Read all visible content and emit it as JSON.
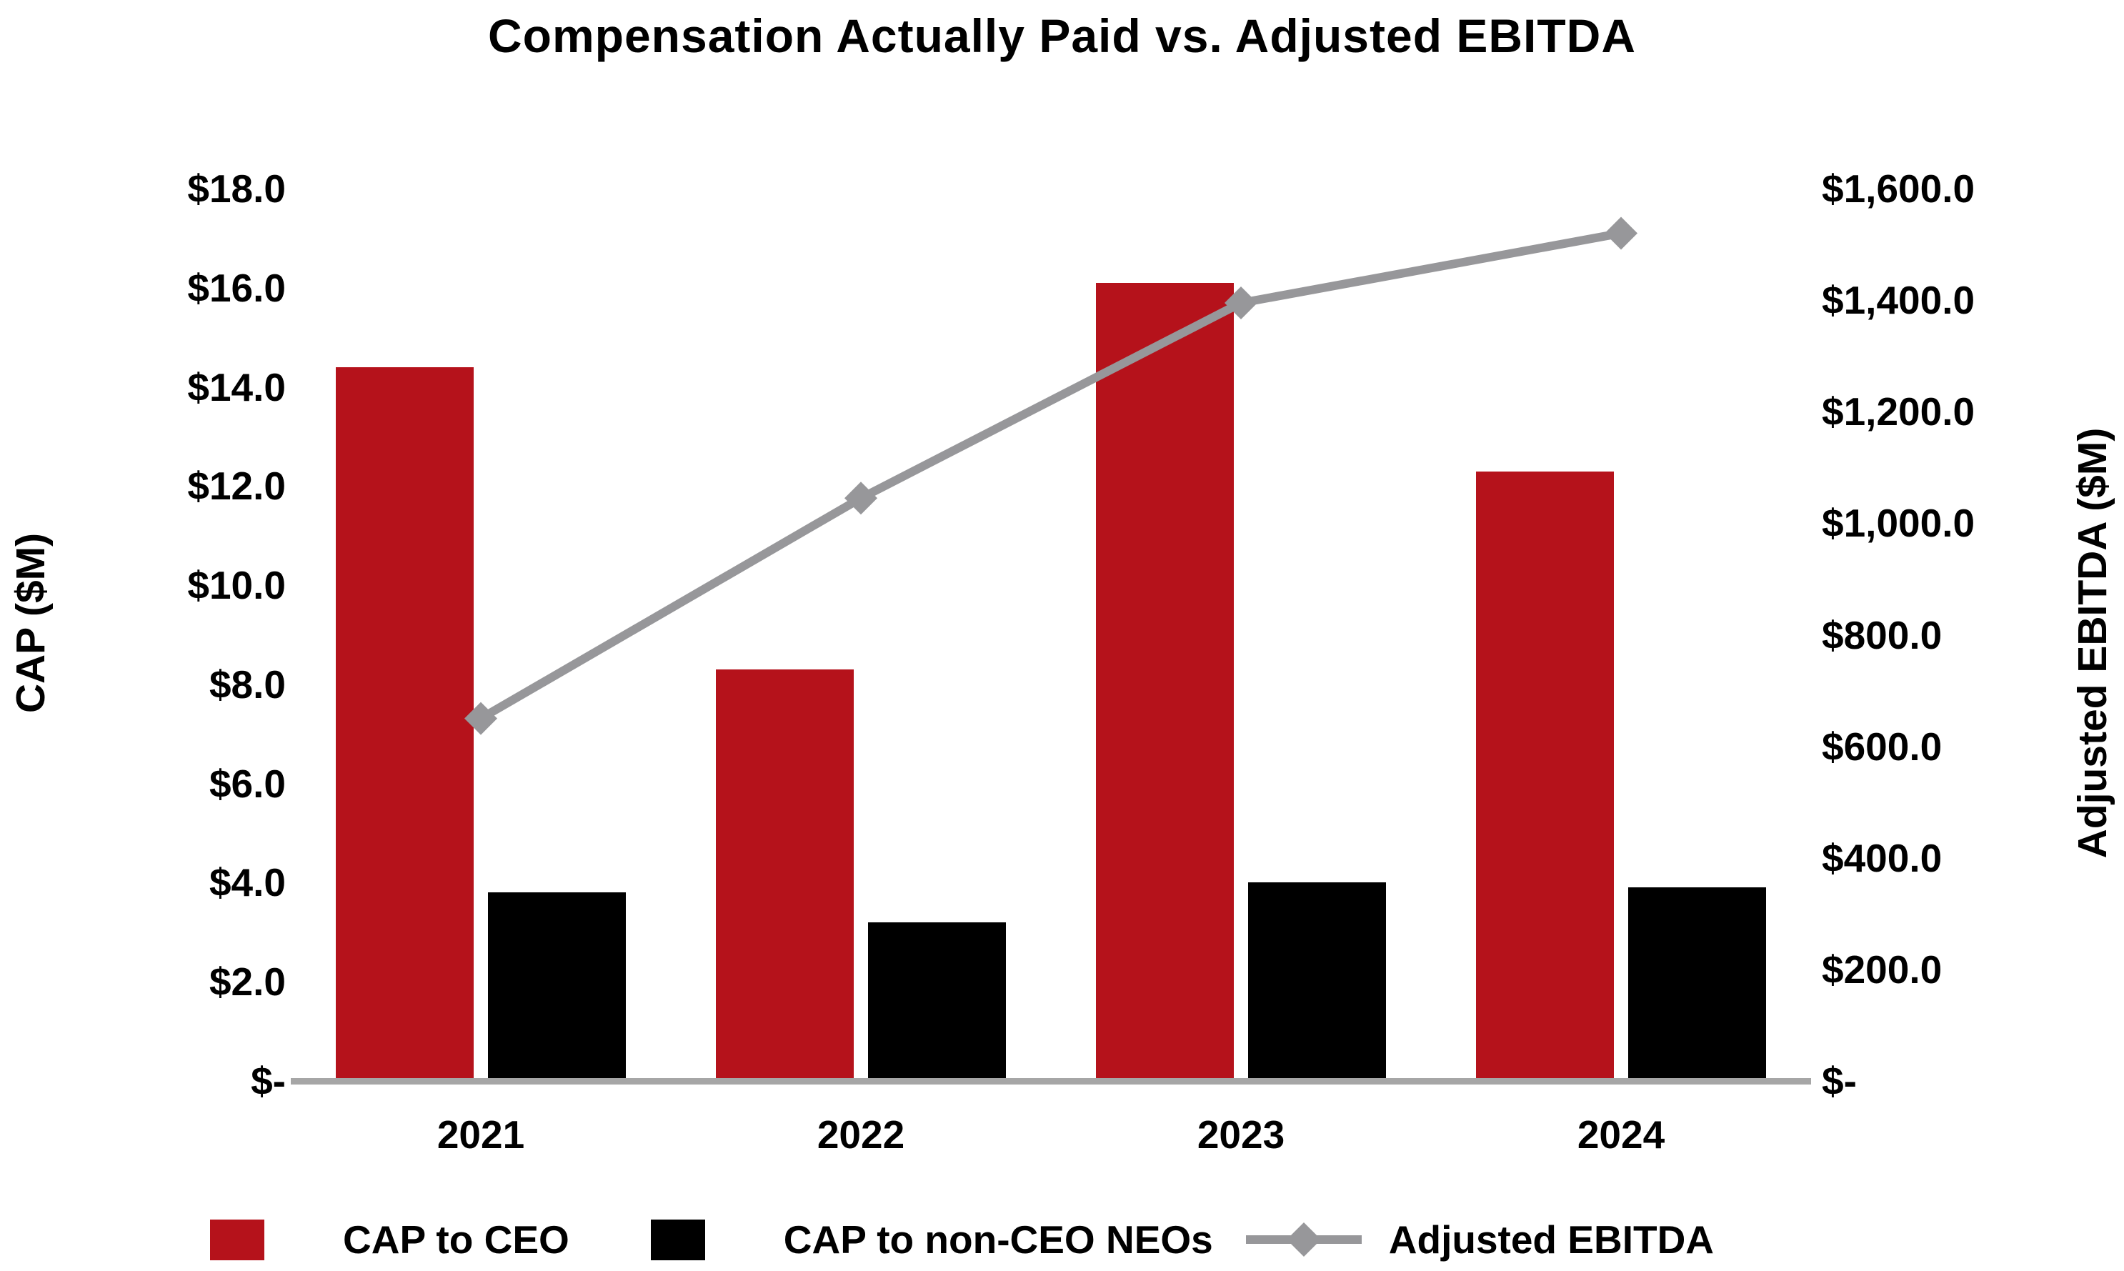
{
  "chart_data": {
    "type": "combo-bar-line",
    "title": "Compensation Actually Paid vs. Adjusted EBITDA",
    "categories": [
      "2021",
      "2022",
      "2023",
      "2024"
    ],
    "series": [
      {
        "name": "CAP to CEO",
        "type": "bar",
        "axis": "left",
        "color": "#B5121B",
        "values": [
          14.4,
          8.3,
          16.1,
          12.3
        ]
      },
      {
        "name": "CAP to non-CEO NEOs",
        "type": "bar",
        "axis": "left",
        "color": "#000000",
        "values": [
          3.8,
          3.2,
          4.0,
          3.9
        ]
      },
      {
        "name": "Adjusted EBITDA",
        "type": "line",
        "axis": "right",
        "color": "#97979A",
        "marker": "diamond",
        "values": [
          650,
          1045,
          1395,
          1520
        ]
      }
    ],
    "left_axis": {
      "label": "CAP ($M)",
      "min": 0,
      "max": 18,
      "step": 2,
      "tick_labels": [
        "$-",
        "$2.0",
        "$4.0",
        "$6.0",
        "$8.0",
        "$10.0",
        "$12.0",
        "$14.0",
        "$16.0",
        "$18.0"
      ]
    },
    "right_axis": {
      "label": "Adjusted EBITDA ($M)",
      "min": 0,
      "max": 1600,
      "step": 200,
      "tick_labels": [
        "$-",
        "$200.0",
        "$400.0",
        "$600.0",
        "$800.0",
        "$1,000.0",
        "$1,200.0",
        "$1,400.0",
        "$1,600.0"
      ]
    },
    "legend": [
      "CAP to CEO",
      "CAP to non-CEO NEOs",
      "Adjusted EBITDA"
    ],
    "legend_position": "bottom",
    "grid": false,
    "baseline_color": "#A6A6A6",
    "background": "#FFFFFF"
  }
}
